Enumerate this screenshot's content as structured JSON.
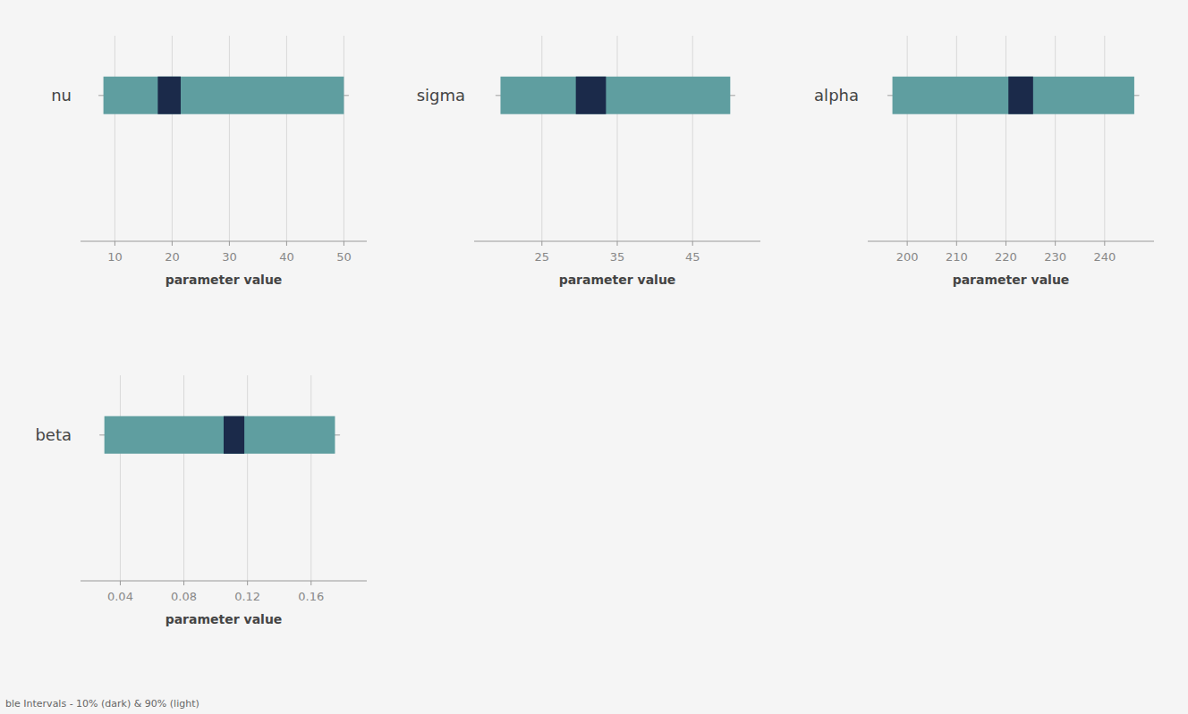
{
  "chart_data": [
    {
      "type": "range_bar",
      "orientation": "horizontal",
      "categories": [
        "nu"
      ],
      "xlabel": "parameter value",
      "xlim": [
        4,
        54
      ],
      "xticks": [
        10,
        20,
        30,
        40,
        50
      ],
      "grid": true,
      "series": [
        {
          "color": "#5f9ea0",
          "low": [
            8.0
          ],
          "high": [
            50.0
          ]
        },
        {
          "color": "#1b2a4a",
          "low": [
            17.5
          ],
          "high": [
            21.5
          ]
        }
      ]
    },
    {
      "type": "range_bar",
      "orientation": "horizontal",
      "categories": [
        "sigma"
      ],
      "xlabel": "parameter value",
      "xlim": [
        16,
        54
      ],
      "xticks": [
        25,
        35,
        45
      ],
      "grid": true,
      "series": [
        {
          "color": "#5f9ea0",
          "low": [
            19.5
          ],
          "high": [
            50.0
          ]
        },
        {
          "color": "#1b2a4a",
          "low": [
            29.5
          ],
          "high": [
            33.5
          ]
        }
      ]
    },
    {
      "type": "range_bar",
      "orientation": "horizontal",
      "categories": [
        "alpha"
      ],
      "xlabel": "parameter value",
      "xlim": [
        192,
        250
      ],
      "xticks": [
        200,
        210,
        220,
        230,
        240
      ],
      "grid": true,
      "series": [
        {
          "color": "#5f9ea0",
          "low": [
            197.0
          ],
          "high": [
            246.0
          ]
        },
        {
          "color": "#1b2a4a",
          "low": [
            220.5
          ],
          "high": [
            225.5
          ]
        }
      ]
    },
    {
      "type": "range_bar",
      "orientation": "horizontal",
      "categories": [
        "beta"
      ],
      "xlabel": "parameter value",
      "xlim": [
        0.015,
        0.195
      ],
      "xticks": [
        0.04,
        0.08,
        0.12,
        0.16
      ],
      "grid": true,
      "series": [
        {
          "color": "#5f9ea0",
          "low": [
            0.03
          ],
          "high": [
            0.175
          ]
        },
        {
          "color": "#1b2a4a",
          "low": [
            0.105
          ],
          "high": [
            0.118
          ]
        }
      ]
    }
  ],
  "caption": "ble Intervals - 10% (dark) & 90% (light)"
}
